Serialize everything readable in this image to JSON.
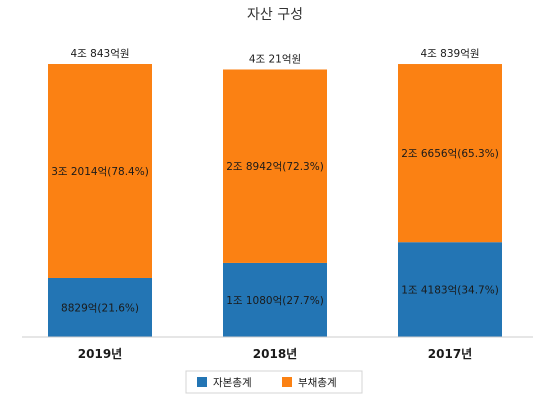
{
  "chart_data": {
    "type": "bar",
    "stacked": true,
    "title": "자산 구성",
    "categories": [
      "2019년",
      "2018년",
      "2017년"
    ],
    "totals": [
      "4조 843억원",
      "4조 21억원",
      "4조 839억원"
    ],
    "total_values": [
      40843,
      40021,
      40839
    ],
    "series": [
      {
        "name": "자본총계",
        "color": "#2375b4",
        "values": [
          8829,
          11080,
          14183
        ],
        "labels": [
          "8829억(21.6%)",
          "1조 1080억(27.7%)",
          "1조 4183억(34.7%)"
        ]
      },
      {
        "name": "부채총계",
        "color": "#fb8113",
        "values": [
          32014,
          28942,
          26656
        ],
        "labels": [
          "3조 2014억(78.4%)",
          "2조 8942억(72.3%)",
          "2조 6656억(65.3%)"
        ]
      }
    ],
    "legend_position": "bottom",
    "grid": false
  }
}
